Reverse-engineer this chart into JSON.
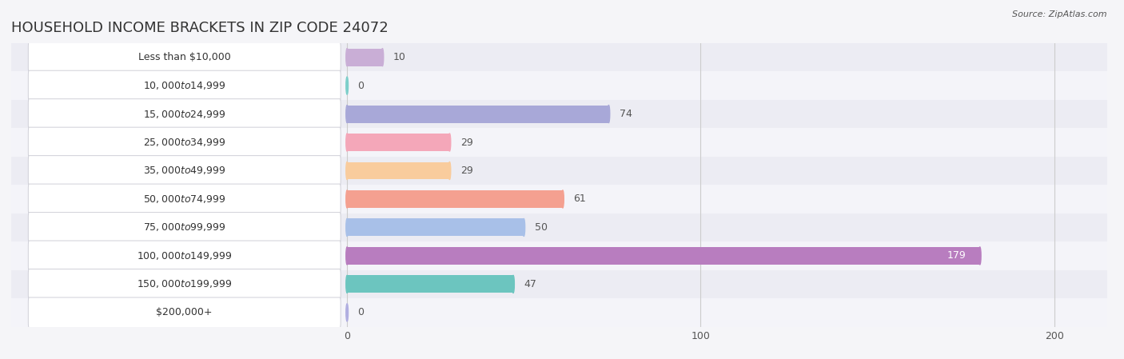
{
  "title": "HOUSEHOLD INCOME BRACKETS IN ZIP CODE 24072",
  "source": "Source: ZipAtlas.com",
  "categories": [
    "Less than $10,000",
    "$10,000 to $14,999",
    "$15,000 to $24,999",
    "$25,000 to $34,999",
    "$35,000 to $49,999",
    "$50,000 to $74,999",
    "$75,000 to $99,999",
    "$100,000 to $149,999",
    "$150,000 to $199,999",
    "$200,000+"
  ],
  "values": [
    10,
    0,
    74,
    29,
    29,
    61,
    50,
    179,
    47,
    0
  ],
  "bar_colors": [
    "#c9aed6",
    "#7dcfca",
    "#a8a8d8",
    "#f4a7b9",
    "#f9cc9d",
    "#f4a090",
    "#a8c0e8",
    "#b87dbf",
    "#6cc5bf",
    "#b0aee0"
  ],
  "bar_label_colors": [
    "#555555",
    "#555555",
    "#555555",
    "#555555",
    "#555555",
    "#555555",
    "#555555",
    "#ffffff",
    "#555555",
    "#555555"
  ],
  "xlim": [
    0,
    210
  ],
  "xticks": [
    0,
    100,
    200
  ],
  "bg_even": "#ececf3",
  "bg_odd": "#f4f4f9",
  "background_color": "#f5f5f8",
  "title_fontsize": 13,
  "label_fontsize": 9,
  "value_fontsize": 9
}
